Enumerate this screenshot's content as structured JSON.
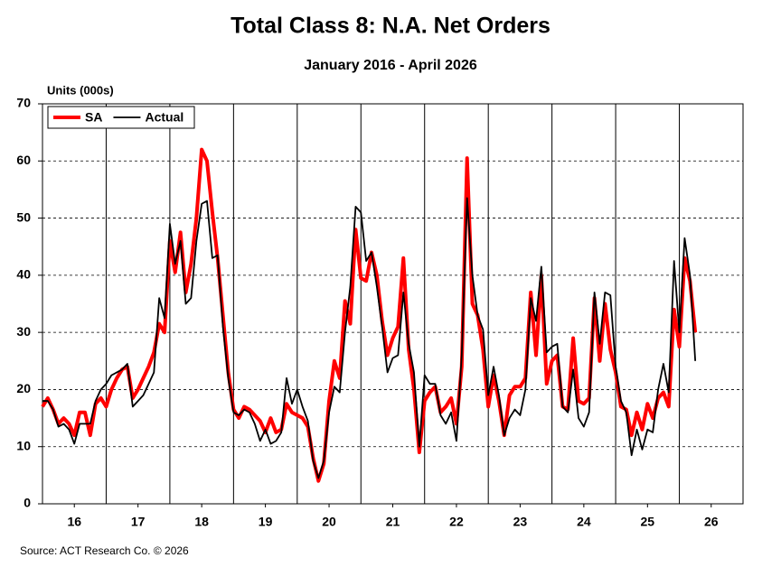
{
  "chart_data": {
    "type": "line",
    "title": "Total Class 8: N.A. Net Orders",
    "subtitle": "January 2016 - April 2026",
    "y_label": "Units (000s)",
    "source": "Source: ACT Research Co. © 2026",
    "legend": "top-left",
    "x": [
      16,
      16.083,
      16.167,
      16.25,
      16.333,
      16.417,
      16.5,
      16.583,
      16.667,
      16.75,
      16.833,
      16.917,
      17,
      17.083,
      17.167,
      17.25,
      17.333,
      17.417,
      17.5,
      17.583,
      17.667,
      17.75,
      17.833,
      17.917,
      18,
      18.083,
      18.167,
      18.25,
      18.333,
      18.417,
      18.5,
      18.583,
      18.667,
      18.75,
      18.833,
      18.917,
      19,
      19.083,
      19.167,
      19.25,
      19.333,
      19.417,
      19.5,
      19.583,
      19.667,
      19.75,
      19.833,
      19.917,
      20,
      20.083,
      20.167,
      20.25,
      20.333,
      20.417,
      20.5,
      20.583,
      20.667,
      20.75,
      20.833,
      20.917,
      21,
      21.083,
      21.167,
      21.25,
      21.333,
      21.417,
      21.5,
      21.583,
      21.667,
      21.75,
      21.833,
      21.917,
      22,
      22.083,
      22.167,
      22.25,
      22.333,
      22.417,
      22.5,
      22.583,
      22.667,
      22.75,
      22.833,
      22.917,
      23,
      23.083,
      23.167,
      23.25,
      23.333,
      23.417,
      23.5,
      23.583,
      23.667,
      23.75,
      23.833,
      23.917,
      24,
      24.083,
      24.167,
      24.25,
      24.333,
      24.417,
      24.5,
      24.583,
      24.667,
      24.75,
      24.833,
      24.917,
      25,
      25.083,
      25.167,
      25.25,
      25.333,
      25.417,
      25.5,
      25.583,
      25.667,
      25.75,
      25.833,
      25.917,
      26,
      26.083,
      26.167,
      26.25
    ],
    "series": [
      {
        "name": "SA",
        "color": "#ff0000",
        "width": 4,
        "values": [
          17,
          18.5,
          16.5,
          14,
          15,
          14,
          12,
          16,
          16,
          12,
          17.5,
          18.5,
          17,
          20,
          22,
          23.5,
          24,
          18.5,
          20,
          22,
          24,
          26.5,
          31.5,
          30,
          46,
          40.5,
          47.5,
          37,
          42,
          50,
          62,
          60,
          51,
          43,
          33,
          23,
          16.5,
          15,
          17,
          16.5,
          15.5,
          14.5,
          12.5,
          15,
          12.5,
          13,
          17.5,
          16,
          15.5,
          15,
          13.5,
          8,
          4,
          7,
          18,
          25,
          22,
          35.5,
          31.5,
          48,
          39.5,
          39,
          44,
          40,
          32,
          26,
          29,
          31,
          43,
          27,
          20,
          9,
          18,
          19.5,
          20.5,
          16,
          17,
          18.5,
          14,
          24,
          60.5,
          35,
          33,
          27,
          17,
          22.5,
          18,
          12,
          19,
          20.5,
          20.5,
          22,
          37,
          26,
          40,
          21,
          25,
          26,
          17,
          16.5,
          29,
          18,
          17.5,
          18.5,
          36,
          25,
          35,
          27,
          23,
          17,
          16.5,
          12,
          16,
          13,
          17.5,
          15,
          18.5,
          19.5,
          17,
          34,
          27.5,
          43,
          39,
          30
        ]
      },
      {
        "name": "Actual",
        "color": "#000000",
        "width": 1.8,
        "values": [
          18,
          18,
          16.5,
          13.5,
          14,
          13,
          10.5,
          14,
          14,
          14,
          18,
          20,
          21,
          22.5,
          23,
          23.5,
          24.5,
          17,
          18,
          19,
          21,
          23,
          36,
          32.5,
          49,
          42,
          46,
          35,
          36,
          46,
          52.5,
          53,
          43,
          43.5,
          31,
          22,
          16,
          15.5,
          16.5,
          16,
          14,
          11,
          13,
          10.5,
          11,
          12.5,
          22,
          17.5,
          20,
          17,
          14.5,
          7.5,
          4.5,
          7.5,
          16,
          20.5,
          19.5,
          30,
          38,
          52,
          51,
          42.5,
          44,
          38,
          31,
          23,
          25.5,
          26,
          37,
          28,
          23,
          10,
          22.5,
          21,
          21,
          15.5,
          14,
          16,
          11,
          26,
          53.5,
          40,
          33,
          30.5,
          19,
          24,
          19,
          12,
          15,
          16.5,
          15.5,
          20,
          36,
          32,
          41.5,
          26.5,
          27.5,
          28,
          17,
          16,
          23.5,
          15,
          13.5,
          16,
          37,
          28,
          37,
          36.5,
          24,
          18,
          16,
          8.5,
          13,
          9.5,
          13,
          12.5,
          20,
          24.5,
          19.5,
          42.5,
          30,
          46.5,
          40,
          25
        ]
      }
    ],
    "xlim": [
      16,
      27
    ],
    "xticks": [
      {
        "value": 16.5,
        "label": "16"
      },
      {
        "value": 17.5,
        "label": "17"
      },
      {
        "value": 18.5,
        "label": "18"
      },
      {
        "value": 19.5,
        "label": "19"
      },
      {
        "value": 20.5,
        "label": "20"
      },
      {
        "value": 21.5,
        "label": "21"
      },
      {
        "value": 22.5,
        "label": "22"
      },
      {
        "value": 23.5,
        "label": "23"
      },
      {
        "value": 24.5,
        "label": "24"
      },
      {
        "value": 25.5,
        "label": "25"
      },
      {
        "value": 26.5,
        "label": "26"
      }
    ],
    "xgrid": [
      17,
      18,
      19,
      20,
      21,
      22,
      23,
      24,
      25,
      26
    ],
    "ylim": [
      0,
      70
    ],
    "yticks": [
      0,
      10,
      20,
      30,
      40,
      50,
      60,
      70
    ],
    "grid": true
  }
}
